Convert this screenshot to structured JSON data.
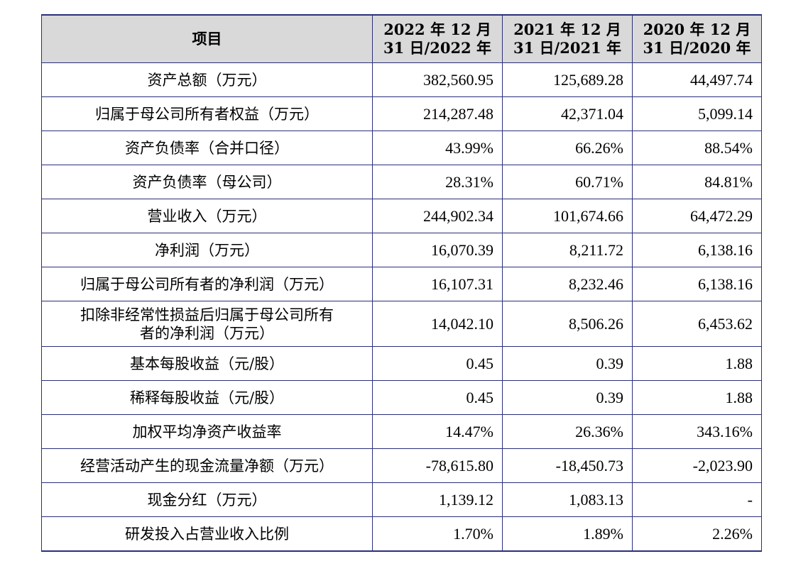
{
  "header": {
    "item": "项目",
    "col1_line1": "2022 年 12 月",
    "col1_line2": "31 日/2022 年",
    "col2_line1": "2021 年 12 月",
    "col2_line2": "31 日/2021 年",
    "col3_line1": "2020 年 12 月",
    "col3_line2": "31 日/2020 年"
  },
  "rows": [
    {
      "label": "资产总额（万元）",
      "v2022": "382,560.95",
      "v2021": "125,689.28",
      "v2020": "44,497.74"
    },
    {
      "label": "归属于母公司所有者权益（万元）",
      "v2022": "214,287.48",
      "v2021": "42,371.04",
      "v2020": "5,099.14"
    },
    {
      "label": "资产负债率（合并口径）",
      "v2022": "43.99%",
      "v2021": "66.26%",
      "v2020": "88.54%"
    },
    {
      "label": "资产负债率（母公司）",
      "v2022": "28.31%",
      "v2021": "60.71%",
      "v2020": "84.81%"
    },
    {
      "label": "营业收入（万元）",
      "v2022": "244,902.34",
      "v2021": "101,674.66",
      "v2020": "64,472.29"
    },
    {
      "label": "净利润（万元）",
      "v2022": "16,070.39",
      "v2021": "8,211.72",
      "v2020": "6,138.16"
    },
    {
      "label": "归属于母公司所有者的净利润（万元）",
      "v2022": "16,107.31",
      "v2021": "8,232.46",
      "v2020": "6,138.16"
    },
    {
      "label_line1": "扣除非经常性损益后归属于母公司所有",
      "label_line2": "者的净利润（万元）",
      "v2022": "14,042.10",
      "v2021": "8,506.26",
      "v2020": "6,453.62"
    },
    {
      "label": "基本每股收益（元/股）",
      "v2022": "0.45",
      "v2021": "0.39",
      "v2020": "1.88"
    },
    {
      "label": "稀释每股收益（元/股）",
      "v2022": "0.45",
      "v2021": "0.39",
      "v2020": "1.88"
    },
    {
      "label": "加权平均净资产收益率",
      "v2022": "14.47%",
      "v2021": "26.36%",
      "v2020": "343.16%"
    },
    {
      "label": "经营活动产生的现金流量净额（万元）",
      "v2022": "-78,615.80",
      "v2021": "-18,450.73",
      "v2020": "-2,023.90"
    },
    {
      "label": "现金分红（万元）",
      "v2022": "1,139.12",
      "v2021": "1,083.13",
      "v2020": "-"
    },
    {
      "label": "研发投入占营业收入比例",
      "v2022": "1.70%",
      "v2021": "1.89%",
      "v2020": "2.26%"
    }
  ]
}
